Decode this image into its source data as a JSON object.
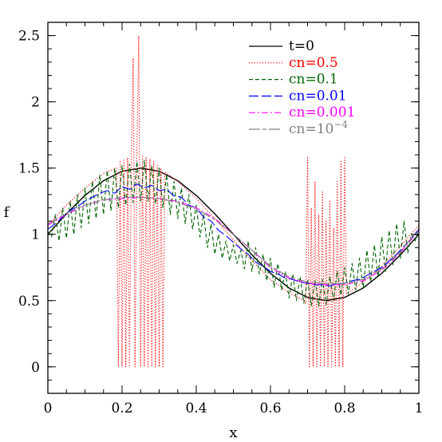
{
  "chart_data": {
    "type": "line",
    "xlabel": "x",
    "ylabel": "f",
    "xlim": [
      0,
      1
    ],
    "ylim": [
      -0.2,
      2.6
    ],
    "xticks": [
      {
        "value": 0,
        "label": "0"
      },
      {
        "value": 0.2,
        "label": "0.2"
      },
      {
        "value": 0.4,
        "label": "0.4"
      },
      {
        "value": 0.6,
        "label": "0.6"
      },
      {
        "value": 0.8,
        "label": "0.8"
      },
      {
        "value": 1,
        "label": "1"
      }
    ],
    "yticks": [
      {
        "value": 0,
        "label": "0"
      },
      {
        "value": 0.5,
        "label": "0.5"
      },
      {
        "value": 1,
        "label": "1"
      },
      {
        "value": 1.5,
        "label": "1.5"
      },
      {
        "value": 2,
        "label": "2"
      },
      {
        "value": 2.5,
        "label": "2.5"
      }
    ],
    "x_minor_step": 0.05,
    "y_minor_step": 0.1,
    "grid": false,
    "legend_position": "top-right",
    "series": [
      {
        "name": "t=0",
        "color": "#000000",
        "dash": "solid",
        "x": [
          0,
          0.05,
          0.1,
          0.15,
          0.2,
          0.25,
          0.3,
          0.35,
          0.4,
          0.45,
          0.5,
          0.55,
          0.6,
          0.65,
          0.7,
          0.75,
          0.8,
          0.85,
          0.9,
          0.95,
          1
        ],
        "y": [
          1.0,
          1.155,
          1.294,
          1.405,
          1.476,
          1.5,
          1.476,
          1.405,
          1.294,
          1.155,
          1.0,
          0.845,
          0.706,
          0.595,
          0.524,
          0.5,
          0.524,
          0.595,
          0.706,
          0.845,
          1.0
        ]
      },
      {
        "name": "cn=0.5",
        "color": "#ff0000",
        "dash": "dotted",
        "x": [
          0,
          0.05,
          0.1,
          0.15,
          0.185,
          0.19,
          0.195,
          0.2,
          0.205,
          0.21,
          0.215,
          0.22,
          0.225,
          0.23,
          0.235,
          0.24,
          0.245,
          0.25,
          0.255,
          0.26,
          0.265,
          0.27,
          0.275,
          0.28,
          0.285,
          0.29,
          0.295,
          0.3,
          0.305,
          0.31,
          0.315,
          0.35,
          0.4,
          0.45,
          0.5,
          0.55,
          0.6,
          0.65,
          0.69,
          0.695,
          0.7,
          0.705,
          0.71,
          0.715,
          0.72,
          0.725,
          0.73,
          0.735,
          0.74,
          0.745,
          0.75,
          0.755,
          0.76,
          0.765,
          0.77,
          0.775,
          0.78,
          0.785,
          0.79,
          0.795,
          0.8,
          0.805,
          0.81,
          0.85,
          0.9,
          0.95,
          1
        ],
        "y": [
          1.07,
          1.22,
          1.35,
          1.46,
          1.5,
          0.0,
          1.55,
          0.0,
          1.56,
          0.0,
          1.58,
          0.0,
          1.6,
          2.33,
          0.0,
          1.62,
          2.5,
          0.0,
          1.6,
          0.0,
          1.58,
          0.0,
          1.57,
          0.0,
          1.55,
          0.0,
          1.52,
          0.0,
          1.5,
          0.0,
          1.47,
          1.4,
          1.27,
          1.12,
          0.96,
          0.8,
          0.66,
          0.56,
          0.5,
          0.48,
          1.58,
          0.0,
          1.2,
          0.0,
          1.4,
          0.0,
          1.15,
          0.0,
          1.32,
          0.0,
          1.1,
          0.0,
          1.25,
          0.0,
          1.05,
          0.0,
          1.4,
          0.0,
          1.55,
          0.0,
          1.58,
          0.55,
          0.56,
          0.64,
          0.76,
          0.91,
          1.07
        ]
      },
      {
        "name": "cn=0.1",
        "color": "#006400",
        "dash": "dashed",
        "x": [
          0,
          0.01,
          0.02,
          0.03,
          0.04,
          0.05,
          0.06,
          0.07,
          0.08,
          0.09,
          0.1,
          0.11,
          0.12,
          0.13,
          0.14,
          0.15,
          0.16,
          0.17,
          0.18,
          0.19,
          0.2,
          0.21,
          0.22,
          0.23,
          0.24,
          0.25,
          0.26,
          0.27,
          0.28,
          0.29,
          0.3,
          0.31,
          0.32,
          0.33,
          0.34,
          0.35,
          0.36,
          0.37,
          0.38,
          0.39,
          0.4,
          0.41,
          0.42,
          0.43,
          0.44,
          0.45,
          0.46,
          0.47,
          0.48,
          0.49,
          0.5,
          0.51,
          0.52,
          0.53,
          0.54,
          0.55,
          0.56,
          0.57,
          0.58,
          0.59,
          0.6,
          0.61,
          0.62,
          0.63,
          0.64,
          0.65,
          0.66,
          0.67,
          0.68,
          0.69,
          0.7,
          0.71,
          0.72,
          0.73,
          0.74,
          0.75,
          0.76,
          0.77,
          0.78,
          0.79,
          0.8,
          0.81,
          0.82,
          0.83,
          0.84,
          0.85,
          0.86,
          0.87,
          0.88,
          0.89,
          0.9,
          0.91,
          0.92,
          0.93,
          0.94,
          0.95,
          0.96,
          0.97,
          0.98,
          0.99,
          1
        ],
        "y": [
          1.02,
          0.98,
          1.15,
          0.95,
          1.2,
          0.97,
          1.25,
          1.0,
          1.3,
          1.05,
          1.35,
          1.08,
          1.4,
          1.12,
          1.45,
          1.15,
          1.48,
          1.18,
          1.5,
          1.2,
          1.52,
          1.22,
          1.53,
          1.24,
          1.55,
          1.25,
          1.56,
          1.25,
          1.52,
          1.23,
          1.5,
          1.2,
          1.45,
          1.15,
          1.4,
          1.12,
          1.35,
          1.08,
          1.3,
          1.04,
          1.22,
          0.98,
          1.15,
          0.9,
          1.08,
          0.85,
          1.0,
          0.82,
          0.95,
          0.8,
          0.92,
          0.78,
          0.88,
          0.74,
          0.95,
          0.72,
          0.9,
          0.7,
          0.85,
          0.65,
          0.82,
          0.6,
          0.78,
          0.58,
          0.72,
          0.52,
          0.7,
          0.5,
          0.68,
          0.48,
          0.66,
          0.46,
          0.65,
          0.46,
          0.66,
          0.47,
          0.68,
          0.5,
          0.72,
          0.54,
          0.75,
          0.55,
          0.78,
          0.58,
          0.82,
          0.6,
          0.88,
          0.64,
          0.92,
          0.68,
          0.98,
          0.72,
          1.03,
          0.77,
          1.08,
          0.82,
          1.1,
          0.86,
          1.0,
          0.95,
          1.05
        ]
      },
      {
        "name": "cn=0.01",
        "color": "#0000ff",
        "dash": "long-dash",
        "x": [
          0,
          0.02,
          0.04,
          0.06,
          0.08,
          0.1,
          0.12,
          0.14,
          0.16,
          0.18,
          0.2,
          0.22,
          0.24,
          0.26,
          0.28,
          0.3,
          0.32,
          0.34,
          0.36,
          0.38,
          0.4,
          0.42,
          0.44,
          0.46,
          0.48,
          0.5,
          0.52,
          0.54,
          0.56,
          0.58,
          0.6,
          0.62,
          0.64,
          0.66,
          0.68,
          0.7,
          0.72,
          0.74,
          0.76,
          0.78,
          0.8,
          0.82,
          0.84,
          0.86,
          0.88,
          0.9,
          0.92,
          0.94,
          0.96,
          0.98,
          1
        ],
        "y": [
          1.04,
          1.08,
          1.13,
          1.18,
          1.21,
          1.25,
          1.28,
          1.31,
          1.33,
          1.31,
          1.36,
          1.34,
          1.38,
          1.35,
          1.37,
          1.33,
          1.34,
          1.29,
          1.28,
          1.22,
          1.2,
          1.13,
          1.1,
          1.03,
          0.99,
          0.94,
          0.89,
          0.85,
          0.79,
          0.76,
          0.72,
          0.7,
          0.67,
          0.66,
          0.64,
          0.63,
          0.62,
          0.62,
          0.61,
          0.63,
          0.63,
          0.65,
          0.66,
          0.69,
          0.72,
          0.75,
          0.8,
          0.85,
          0.91,
          0.97,
          1.04
        ]
      },
      {
        "name": "cn=0.001",
        "color": "#ff00ff",
        "dash": "dash-dot",
        "x": [
          0,
          0.05,
          0.1,
          0.15,
          0.2,
          0.25,
          0.3,
          0.35,
          0.4,
          0.45,
          0.5,
          0.55,
          0.6,
          0.65,
          0.7,
          0.75,
          0.8,
          0.85,
          0.9,
          0.95,
          1
        ],
        "y": [
          1.07,
          1.15,
          1.22,
          1.26,
          1.27,
          1.28,
          1.27,
          1.25,
          1.2,
          1.12,
          1.0,
          0.88,
          0.75,
          0.67,
          0.63,
          0.62,
          0.62,
          0.65,
          0.73,
          0.86,
          1.03
        ]
      },
      {
        "name": "cn=10",
        "name_superscript": "−4",
        "color": "#808080",
        "dash": "long-dash-short",
        "x": [
          0,
          0.05,
          0.1,
          0.15,
          0.2,
          0.25,
          0.3,
          0.35,
          0.4,
          0.45,
          0.5,
          0.55,
          0.6,
          0.65,
          0.7,
          0.75,
          0.8,
          0.85,
          0.9,
          0.95,
          1
        ],
        "y": [
          1.08,
          1.16,
          1.22,
          1.26,
          1.28,
          1.28,
          1.27,
          1.24,
          1.19,
          1.11,
          1.0,
          0.88,
          0.76,
          0.68,
          0.64,
          0.63,
          0.63,
          0.66,
          0.74,
          0.87,
          1.04
        ]
      }
    ]
  }
}
